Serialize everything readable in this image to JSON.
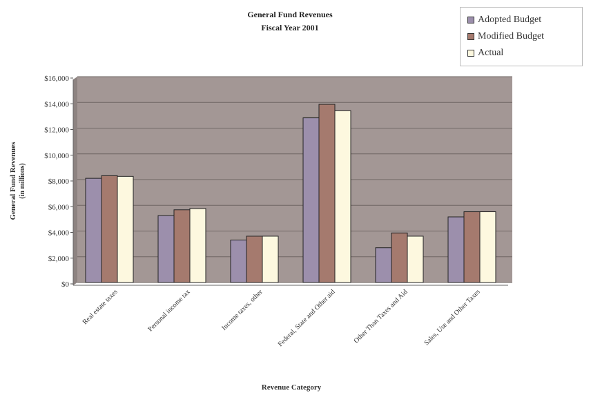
{
  "chart_data": {
    "type": "bar",
    "title": "General Fund Revenues",
    "subtitle": "Fiscal Year 2001",
    "xlabel": "Revenue Category",
    "ylabel": "General Fund Revenues",
    "ylabel_unit": "(in millions)",
    "categories": [
      "Real estate taxes",
      "Personal income tax",
      "Income taxes, other",
      "Federal, State and Other aid",
      "Other Than Taxes and Aid",
      "Sales, Use and Other Taxes"
    ],
    "series": [
      {
        "name": "Adopted Budget",
        "color": "#9c8fac",
        "values": [
          8100,
          5200,
          3300,
          12800,
          2700,
          5100
        ]
      },
      {
        "name": "Modified Budget",
        "color": "#a57a6e",
        "values": [
          8300,
          5650,
          3600,
          13850,
          3850,
          5500
        ]
      },
      {
        "name": "Actual",
        "color": "#fdf8df",
        "values": [
          8250,
          5750,
          3600,
          13350,
          3600,
          5500
        ]
      }
    ],
    "ylim": [
      0,
      16000
    ],
    "yticks": [
      "$0",
      "$2,000",
      "$4,000",
      "$6,000",
      "$8,000",
      "$10,000",
      "$12,000",
      "$14,000",
      "$16,000"
    ],
    "plot_background": "#a39795",
    "grid": true,
    "legend_position": "top-right"
  }
}
